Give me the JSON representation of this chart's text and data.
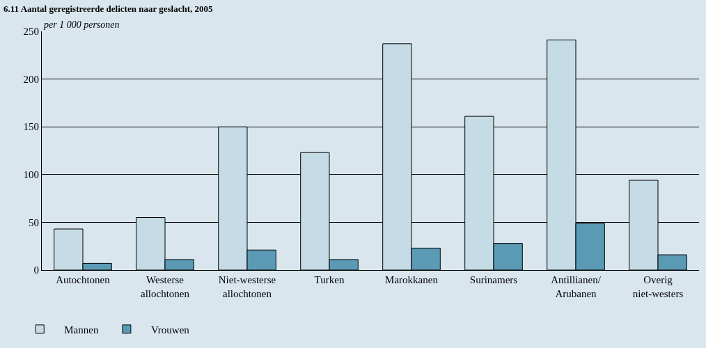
{
  "chart_data": {
    "type": "bar",
    "title": "6.11 Aantal geregistreerde delicten naar geslacht, 2005",
    "ylabel": "per 1 000 personen",
    "categories": [
      "Autochtonen",
      "Westerse\nallochtonen",
      "Niet-westerse\nallochtonen",
      "Turken",
      "Marokkanen",
      "Surinamers",
      "Antillianen/\nArubanen",
      "Overig\nniet-westers"
    ],
    "series": [
      {
        "name": "Mannen",
        "color": "#c5dbe6",
        "values": [
          43,
          55,
          150,
          123,
          237,
          161,
          241,
          94
        ]
      },
      {
        "name": "Vrouwen",
        "color": "#5b9ab5",
        "values": [
          7,
          11,
          21,
          11,
          23,
          28,
          49,
          16
        ]
      }
    ],
    "ylim": [
      0,
      250
    ],
    "yticks": [
      0,
      50,
      100,
      150,
      200,
      250
    ],
    "grid": "y",
    "legend": "bottom left"
  }
}
